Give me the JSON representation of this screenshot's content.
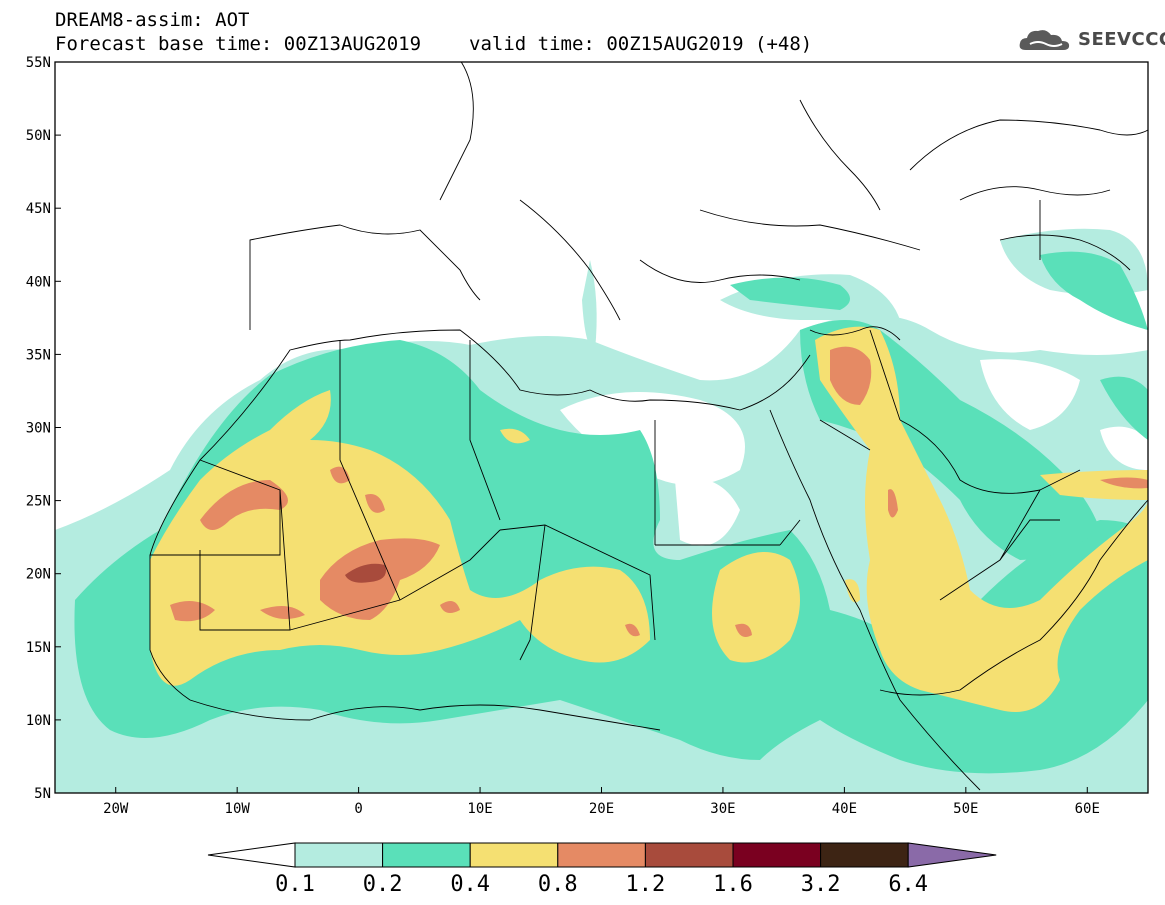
{
  "title": {
    "line1": "DREAM8-assim: AOT",
    "base": "Forecast base time: 00Z13AUG2019",
    "valid": "valid time: 00Z15AUG2019 (+48)"
  },
  "logo": {
    "text": "SEEVCCC",
    "icon": "cloud-icon"
  },
  "map": {
    "region": "North Africa, Middle East and Mediterranean",
    "lon_range": [
      -25,
      65
    ],
    "lat_range": [
      5,
      55
    ],
    "x_ticks": [
      {
        "lon": -20,
        "label": "20W"
      },
      {
        "lon": -10,
        "label": "10W"
      },
      {
        "lon": 0,
        "label": "0"
      },
      {
        "lon": 10,
        "label": "10E"
      },
      {
        "lon": 20,
        "label": "20E"
      },
      {
        "lon": 30,
        "label": "30E"
      },
      {
        "lon": 40,
        "label": "40E"
      },
      {
        "lon": 50,
        "label": "50E"
      },
      {
        "lon": 60,
        "label": "60E"
      }
    ],
    "y_ticks": [
      {
        "lat": 55,
        "label": "55N"
      },
      {
        "lat": 50,
        "label": "50N"
      },
      {
        "lat": 45,
        "label": "45N"
      },
      {
        "lat": 40,
        "label": "40N"
      },
      {
        "lat": 35,
        "label": "35N"
      },
      {
        "lat": 30,
        "label": "30N"
      },
      {
        "lat": 25,
        "label": "25N"
      },
      {
        "lat": 20,
        "label": "20N"
      },
      {
        "lat": 15,
        "label": "15N"
      },
      {
        "lat": 10,
        "label": "10N"
      },
      {
        "lat": 5,
        "label": "5N"
      }
    ]
  },
  "colorbar": {
    "levels": [
      "0.1",
      "0.2",
      "0.4",
      "0.8",
      "1.2",
      "1.6",
      "3.2",
      "6.4"
    ],
    "colors": [
      "#ffffff",
      "#b4ece0",
      "#5ae0b9",
      "#f5e072",
      "#e58a64",
      "#a84b3c",
      "#7a0020",
      "#3d2414",
      "#8a6aa8"
    ]
  }
}
